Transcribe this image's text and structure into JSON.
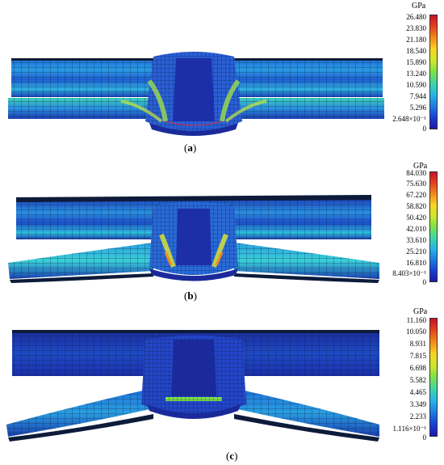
{
  "figure": {
    "panels": [
      {
        "id": "a",
        "caption_open": "(",
        "caption_letter": "a",
        "caption_close": ")",
        "unit": "GPa",
        "ticks": [
          "26.480",
          "23.830",
          "21.180",
          "18.540",
          "15.890",
          "13.240",
          "10.590",
          "7.944",
          "5.296",
          "2.648×10⁻¹",
          "0"
        ]
      },
      {
        "id": "b",
        "caption_open": "(",
        "caption_letter": "b",
        "caption_close": ")",
        "unit": "GPa",
        "ticks": [
          "84.030",
          "75.630",
          "67.220",
          "58.820",
          "50.420",
          "42.010",
          "33.610",
          "25.210",
          "16.810",
          "8.403×10⁻¹",
          "0"
        ]
      },
      {
        "id": "c",
        "caption_open": "(",
        "caption_letter": "c",
        "caption_close": ")",
        "unit": "GPa",
        "ticks": [
          "11.160",
          "10.050",
          "8.931",
          "7.815",
          "6.698",
          "5.582",
          "4.465",
          "3.349",
          "2.233",
          "1.116×10⁻¹",
          "0"
        ]
      }
    ],
    "colormap": [
      "#c8102e",
      "#e5431a",
      "#f28b1c",
      "#f9d423",
      "#cfe82a",
      "#7fe04a",
      "#3fd6a6",
      "#27b5e6",
      "#1f7de0",
      "#1a3fd6",
      "#1a1aa8"
    ]
  }
}
